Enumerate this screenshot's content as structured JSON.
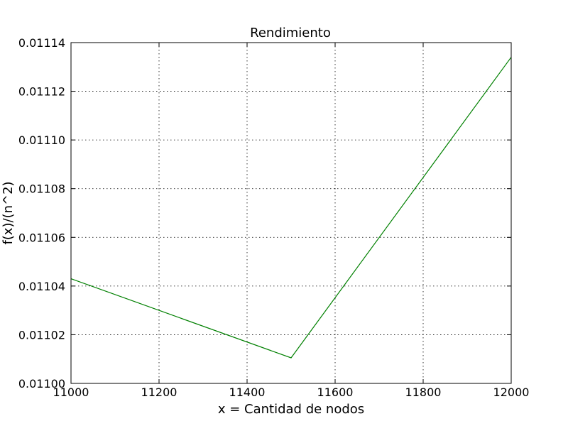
{
  "chart_data": {
    "type": "line",
    "title": "Rendimiento",
    "xlabel": "x = Cantidad de nodos",
    "ylabel": "f(x)/(n^2)",
    "xlim": [
      11000,
      12000
    ],
    "ylim": [
      0.011,
      0.01114
    ],
    "xticks": [
      "11000",
      "11200",
      "11400",
      "11600",
      "11800",
      "12000"
    ],
    "yticks": [
      "0.01100",
      "0.01102",
      "0.01104",
      "0.01106",
      "0.01108",
      "0.01110",
      "0.01112",
      "0.01114"
    ],
    "grid": true,
    "series": [
      {
        "color": "#008000",
        "x": [
          11000,
          11500,
          12000
        ],
        "y": [
          0.011043,
          0.0110105,
          0.011134
        ]
      }
    ]
  }
}
